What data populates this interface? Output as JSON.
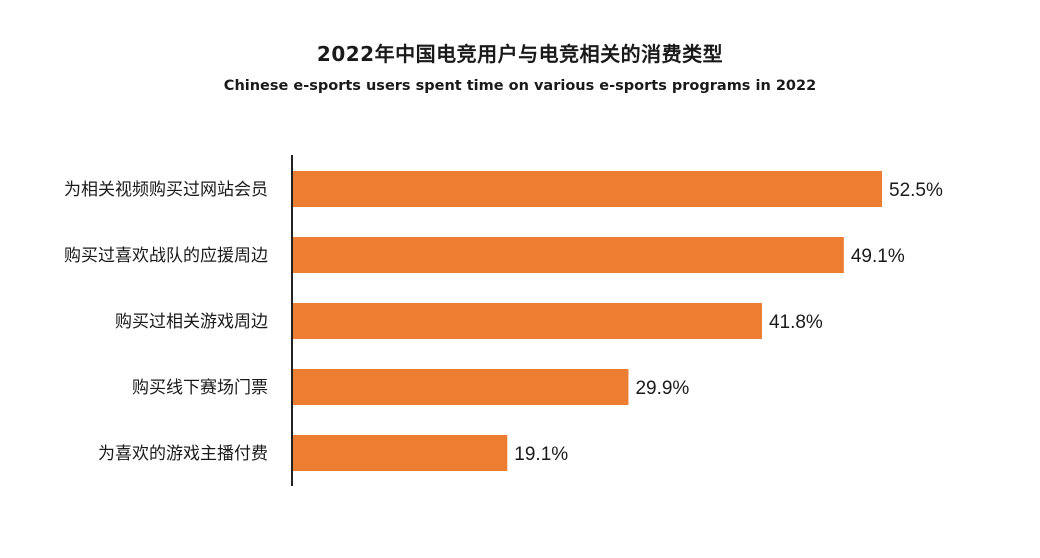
{
  "chart_data": {
    "type": "bar",
    "orientation": "horizontal",
    "title": "2022年中国电竞用户与电竞相关的消费类型",
    "subtitle": "Chinese e-sports users spent time on various e-sports programs in 2022",
    "categories": [
      "为相关视频购买过网站会员",
      "购买过喜欢战队的应援周边",
      "购买过相关游戏周边",
      "购买线下赛场门票",
      "为喜欢的游戏主播付费"
    ],
    "values": [
      52.5,
      49.1,
      41.8,
      29.9,
      19.1
    ],
    "value_labels": [
      "52.5%",
      "49.1%",
      "41.8%",
      "29.9%",
      "19.1%"
    ],
    "unit": "%",
    "xlim": [
      0,
      60
    ],
    "grid": false,
    "legend": "none",
    "bar_color": "#ed7d31",
    "axis_color": "#222222"
  }
}
